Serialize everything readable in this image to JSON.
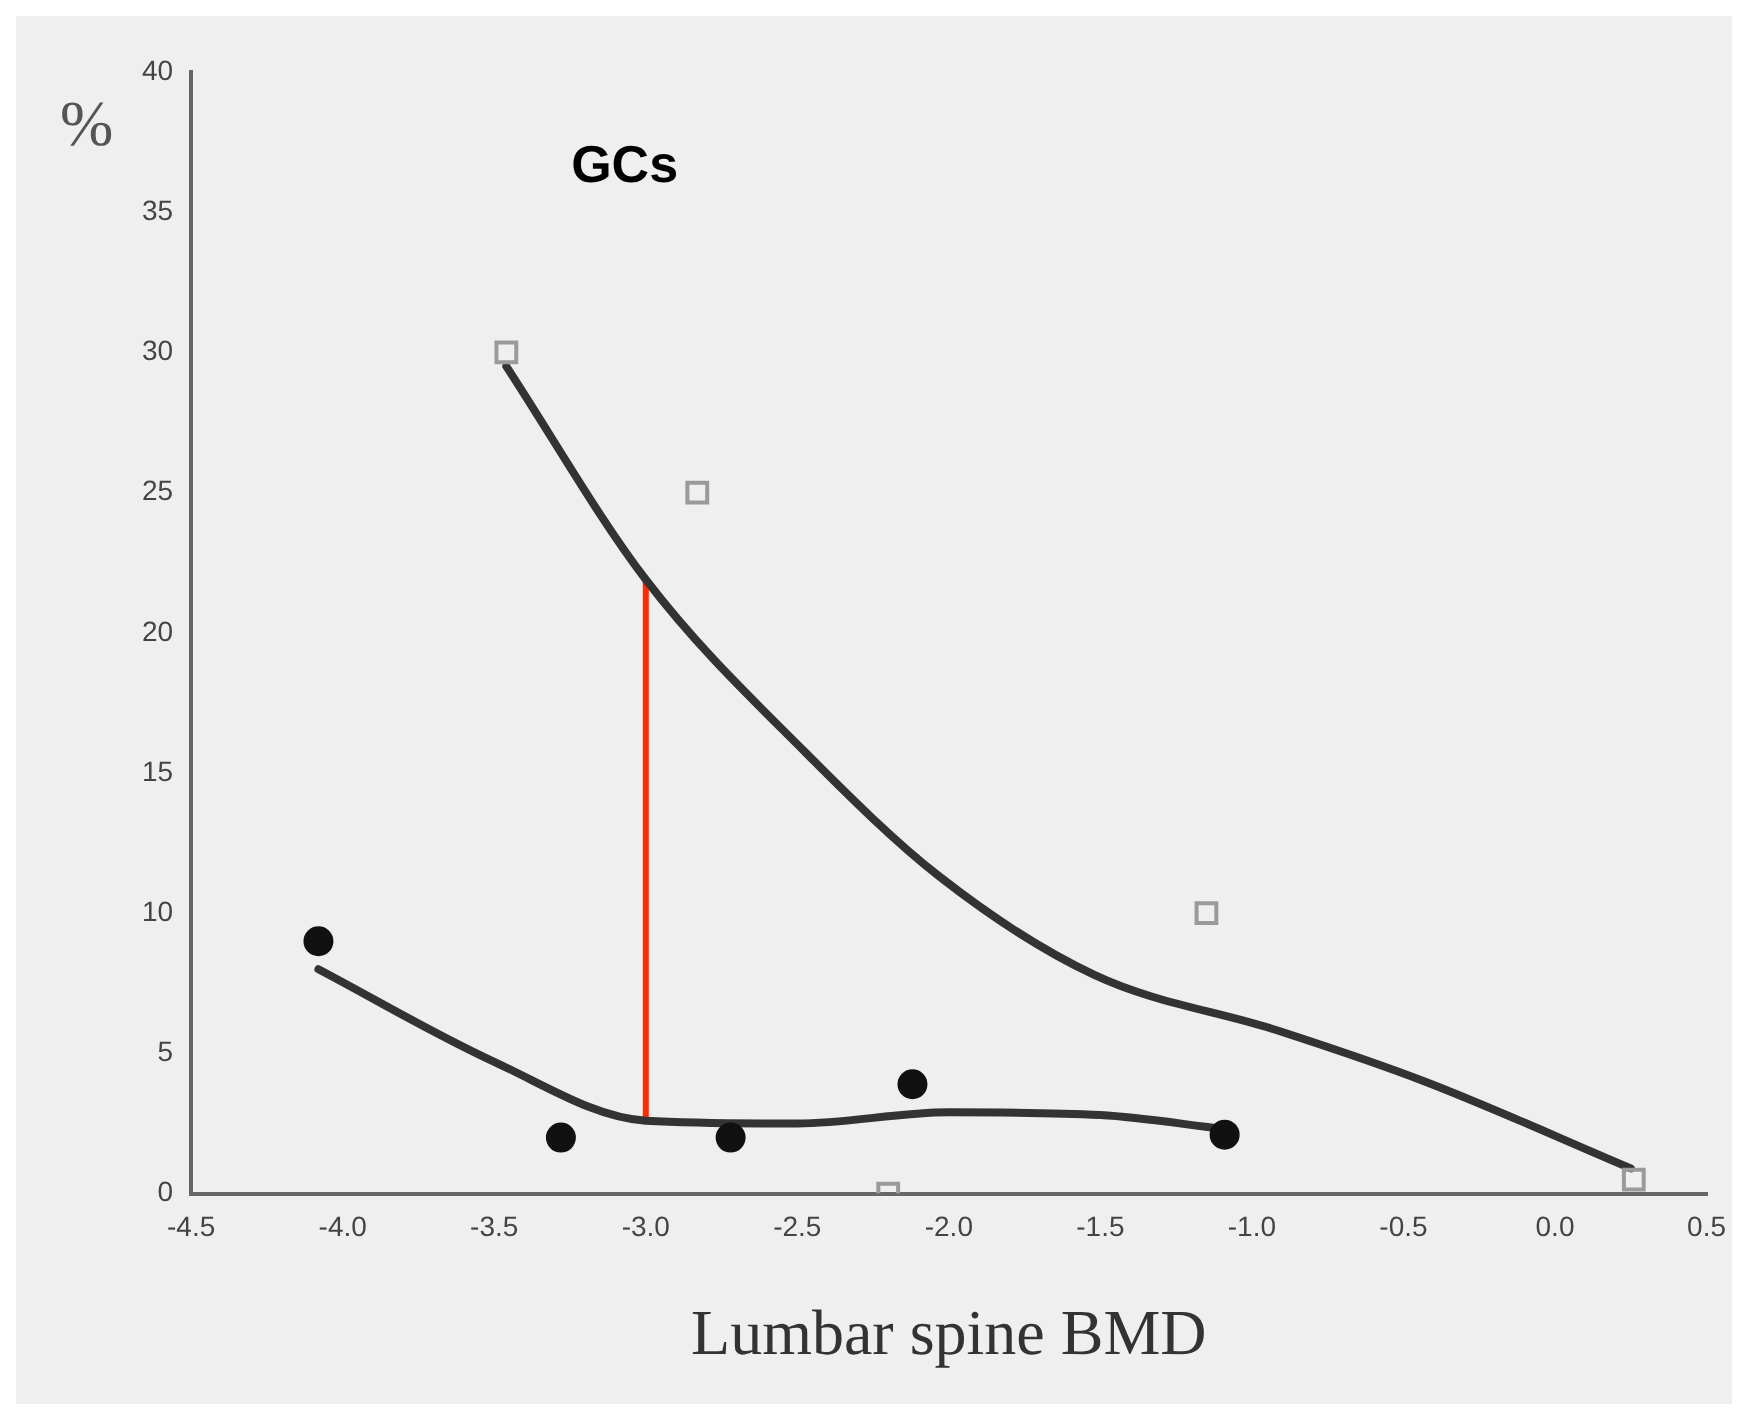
{
  "chart_data": {
    "type": "scatter",
    "xlabel": "Lumbar spine BMD",
    "ylabel": "%",
    "annotations": [
      "GCs"
    ],
    "xlim": [
      -4.5,
      0.5
    ],
    "xticks": [
      {
        "value": -4.5,
        "label": "-4.5"
      },
      {
        "value": -4,
        "label": "-4.0"
      },
      {
        "value": -3.5,
        "label": "-3.5"
      },
      {
        "value": -3,
        "label": "-3.0"
      },
      {
        "value": -2.5,
        "label": "-2.5"
      },
      {
        "value": -2,
        "label": "-2.0"
      },
      {
        "value": -1.5,
        "label": "-1.5"
      },
      {
        "value": -1,
        "label": "-1.0"
      },
      {
        "value": -0.5,
        "label": "-0.5"
      },
      {
        "value": 0,
        "label": "0.0"
      },
      {
        "value": 0.5,
        "label": "0.5"
      }
    ],
    "ylim": [
      0,
      40
    ],
    "yticks": [
      0,
      5,
      10,
      15,
      20,
      25,
      30,
      35,
      40
    ],
    "grid": false,
    "legend": false,
    "series": [
      {
        "type": "scatter",
        "marker": "square",
        "color": "#9a9a9a",
        "x": [
          -3.46,
          -2.83,
          -2.2,
          -1.15,
          0.26
        ],
        "values": [
          30,
          25,
          0,
          10,
          0.5
        ]
      },
      {
        "type": "scatter",
        "marker": "circle",
        "color": "#111111",
        "x": [
          -4.08,
          -3.28,
          -2.72,
          -2.12,
          -1.09
        ],
        "values": [
          9,
          2,
          2,
          3.9,
          2.1
        ]
      },
      {
        "type": "line",
        "marker": "none",
        "color": "#333333",
        "x": [
          -3.46,
          -3.0,
          -2.47,
          -2.03,
          -1.52,
          -0.91,
          -0.43,
          0.25
        ],
        "values": [
          29.5,
          21.9,
          15.7,
          11.3,
          7.8,
          5.8,
          4,
          0.9
        ]
      },
      {
        "type": "line",
        "marker": "none",
        "color": "#333333",
        "x": [
          -4.08,
          -3.5,
          -3.0,
          -2.5,
          -2.0,
          -1.5,
          -1.09
        ],
        "values": [
          8,
          4.7,
          2.6,
          2.5,
          2.9,
          2.8,
          2.3
        ]
      },
      {
        "type": "line",
        "marker": "none",
        "color": "#ff2a00",
        "x": [
          -3,
          -3
        ],
        "values": [
          2.6,
          21.9
        ]
      }
    ]
  }
}
